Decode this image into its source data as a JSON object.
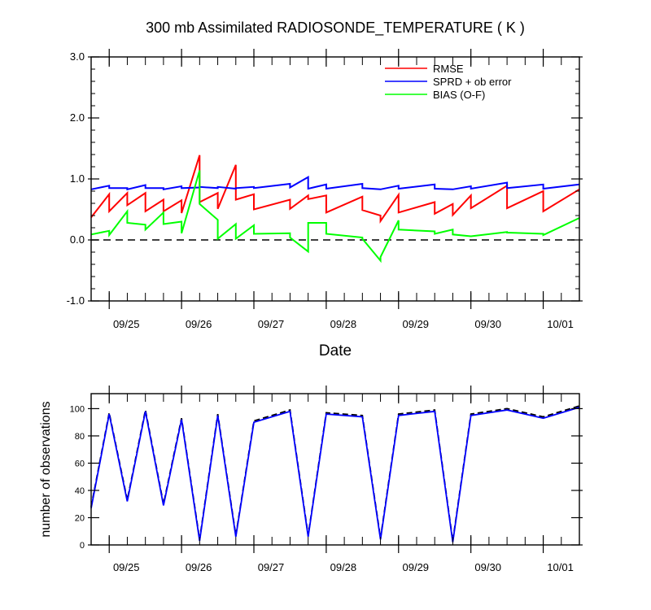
{
  "chart_data": [
    {
      "type": "line",
      "title": "300 mb Assimilated RADIOSONDE_TEMPERATURE ( K )",
      "xlabel": "Date",
      "ylabel": "",
      "xlim": [
        "2015-09-24T18:00",
        "2015-10-01T12:00"
      ],
      "ylim": [
        -1.0,
        3.0
      ],
      "yticks": [
        "-1.0",
        "0.0",
        "1.0",
        "2.0",
        "3.0"
      ],
      "xtick_labels": [
        "09/25",
        "09/26",
        "09/27",
        "09/28",
        "09/29",
        "09/30",
        "10/01"
      ],
      "zero_line": true,
      "grid": false,
      "legend_position": "top-right",
      "series": [
        {
          "name": "RMSE",
          "color": "#ff0000",
          "points": [
            [
              "2015-09-24T18:00",
              0.37
            ],
            [
              "2015-09-25T00:00",
              0.75
            ],
            [
              "2015-09-25T00:00",
              0.47
            ],
            [
              "2015-09-25T06:00",
              0.77
            ],
            [
              "2015-09-25T06:00",
              0.57
            ],
            [
              "2015-09-25T12:00",
              0.77
            ],
            [
              "2015-09-25T12:00",
              0.47
            ],
            [
              "2015-09-25T18:00",
              0.66
            ],
            [
              "2015-09-25T18:00",
              0.47
            ],
            [
              "2015-09-26T00:00",
              0.65
            ],
            [
              "2015-09-26T00:00",
              0.44
            ],
            [
              "2015-09-26T06:00",
              1.39
            ],
            [
              "2015-09-26T06:00",
              0.62
            ],
            [
              "2015-09-26T12:00",
              0.77
            ],
            [
              "2015-09-26T12:00",
              0.51
            ],
            [
              "2015-09-26T18:00",
              1.23
            ],
            [
              "2015-09-26T18:00",
              0.66
            ],
            [
              "2015-09-27T00:00",
              0.75
            ],
            [
              "2015-09-27T00:00",
              0.5
            ],
            [
              "2015-09-27T12:00",
              0.66
            ],
            [
              "2015-09-27T12:00",
              0.51
            ],
            [
              "2015-09-27T18:00",
              0.73
            ],
            [
              "2015-09-27T18:00",
              0.67
            ],
            [
              "2015-09-28T00:00",
              0.73
            ],
            [
              "2015-09-28T00:00",
              0.45
            ],
            [
              "2015-09-28T12:00",
              0.71
            ],
            [
              "2015-09-28T12:00",
              0.49
            ],
            [
              "2015-09-28T18:00",
              0.4
            ],
            [
              "2015-09-28T18:00",
              0.31
            ],
            [
              "2015-09-29T00:00",
              0.74
            ],
            [
              "2015-09-29T00:00",
              0.45
            ],
            [
              "2015-09-29T12:00",
              0.62
            ],
            [
              "2015-09-29T12:00",
              0.43
            ],
            [
              "2015-09-29T18:00",
              0.59
            ],
            [
              "2015-09-29T18:00",
              0.41
            ],
            [
              "2015-09-30T00:00",
              0.73
            ],
            [
              "2015-09-30T00:00",
              0.52
            ],
            [
              "2015-09-30T12:00",
              0.89
            ],
            [
              "2015-09-30T12:00",
              0.52
            ],
            [
              "2015-10-01T00:00",
              0.8
            ],
            [
              "2015-10-01T00:00",
              0.47
            ],
            [
              "2015-10-01T12:00",
              0.83
            ]
          ]
        },
        {
          "name": "SPRD + ob error",
          "color": "#0000ff",
          "points": [
            [
              "2015-09-24T18:00",
              0.83
            ],
            [
              "2015-09-25T00:00",
              0.89
            ],
            [
              "2015-09-25T00:00",
              0.85
            ],
            [
              "2015-09-25T06:00",
              0.85
            ],
            [
              "2015-09-25T06:00",
              0.83
            ],
            [
              "2015-09-25T12:00",
              0.9
            ],
            [
              "2015-09-25T12:00",
              0.85
            ],
            [
              "2015-09-25T18:00",
              0.85
            ],
            [
              "2015-09-25T18:00",
              0.83
            ],
            [
              "2015-09-26T00:00",
              0.88
            ],
            [
              "2015-09-26T00:00",
              0.85
            ],
            [
              "2015-09-26T06:00",
              0.86
            ],
            [
              "2015-09-26T06:00",
              0.87
            ],
            [
              "2015-09-26T12:00",
              0.85
            ],
            [
              "2015-09-26T12:00",
              0.87
            ],
            [
              "2015-09-26T18:00",
              0.84
            ],
            [
              "2015-09-26T18:00",
              0.85
            ],
            [
              "2015-09-27T00:00",
              0.87
            ],
            [
              "2015-09-27T00:00",
              0.85
            ],
            [
              "2015-09-27T12:00",
              0.92
            ],
            [
              "2015-09-27T12:00",
              0.86
            ],
            [
              "2015-09-27T18:00",
              1.03
            ],
            [
              "2015-09-27T18:00",
              0.84
            ],
            [
              "2015-09-28T00:00",
              0.91
            ],
            [
              "2015-09-28T00:00",
              0.84
            ],
            [
              "2015-09-28T12:00",
              0.92
            ],
            [
              "2015-09-28T12:00",
              0.85
            ],
            [
              "2015-09-28T18:00",
              0.83
            ],
            [
              "2015-09-28T18:00",
              0.83
            ],
            [
              "2015-09-29T00:00",
              0.89
            ],
            [
              "2015-09-29T00:00",
              0.84
            ],
            [
              "2015-09-29T12:00",
              0.91
            ],
            [
              "2015-09-29T12:00",
              0.84
            ],
            [
              "2015-09-29T18:00",
              0.83
            ],
            [
              "2015-09-29T18:00",
              0.83
            ],
            [
              "2015-09-30T00:00",
              0.88
            ],
            [
              "2015-09-30T00:00",
              0.84
            ],
            [
              "2015-09-30T12:00",
              0.94
            ],
            [
              "2015-09-30T12:00",
              0.85
            ],
            [
              "2015-10-01T00:00",
              0.91
            ],
            [
              "2015-10-01T00:00",
              0.84
            ],
            [
              "2015-10-01T12:00",
              0.91
            ]
          ]
        },
        {
          "name": "BIAS (O-F)",
          "color": "#00ff00",
          "points": [
            [
              "2015-09-24T18:00",
              0.09
            ],
            [
              "2015-09-25T00:00",
              0.15
            ],
            [
              "2015-09-25T00:00",
              0.08
            ],
            [
              "2015-09-25T06:00",
              0.47
            ],
            [
              "2015-09-25T06:00",
              0.28
            ],
            [
              "2015-09-25T12:00",
              0.25
            ],
            [
              "2015-09-25T12:00",
              0.17
            ],
            [
              "2015-09-25T18:00",
              0.45
            ],
            [
              "2015-09-25T18:00",
              0.26
            ],
            [
              "2015-09-26T00:00",
              0.3
            ],
            [
              "2015-09-26T00:00",
              0.11
            ],
            [
              "2015-09-26T06:00",
              1.14
            ],
            [
              "2015-09-26T06:00",
              0.59
            ],
            [
              "2015-09-26T12:00",
              0.33
            ],
            [
              "2015-09-26T12:00",
              0.02
            ],
            [
              "2015-09-26T18:00",
              0.26
            ],
            [
              "2015-09-26T18:00",
              0.02
            ],
            [
              "2015-09-27T00:00",
              0.24
            ],
            [
              "2015-09-27T00:00",
              0.1
            ],
            [
              "2015-09-27T12:00",
              0.11
            ],
            [
              "2015-09-27T12:00",
              0.04
            ],
            [
              "2015-09-27T18:00",
              -0.19
            ],
            [
              "2015-09-27T18:00",
              0.28
            ],
            [
              "2015-09-28T00:00",
              0.28
            ],
            [
              "2015-09-28T00:00",
              0.1
            ],
            [
              "2015-09-28T12:00",
              0.04
            ],
            [
              "2015-09-28T12:00",
              0.02
            ],
            [
              "2015-09-28T18:00",
              -0.34
            ],
            [
              "2015-09-28T18:00",
              -0.28
            ],
            [
              "2015-09-29T00:00",
              0.32
            ],
            [
              "2015-09-29T00:00",
              0.17
            ],
            [
              "2015-09-29T12:00",
              0.14
            ],
            [
              "2015-09-29T12:00",
              0.1
            ],
            [
              "2015-09-29T18:00",
              0.17
            ],
            [
              "2015-09-29T18:00",
              0.09
            ],
            [
              "2015-09-30T00:00",
              0.06
            ],
            [
              "2015-09-30T00:00",
              0.06
            ],
            [
              "2015-09-30T12:00",
              0.13
            ],
            [
              "2015-09-30T12:00",
              0.12
            ],
            [
              "2015-10-01T00:00",
              0.1
            ],
            [
              "2015-10-01T00:00",
              0.08
            ],
            [
              "2015-10-01T12:00",
              0.36
            ]
          ]
        }
      ]
    },
    {
      "type": "line",
      "title": "",
      "xlabel": "",
      "ylabel": "number of observations",
      "xlim": [
        "2015-09-24T18:00",
        "2015-10-01T12:00"
      ],
      "ylim": [
        0,
        111
      ],
      "yticks": [
        "0",
        "20",
        "40",
        "60",
        "80",
        "100"
      ],
      "xtick_labels": [
        "09/25",
        "09/26",
        "09/27",
        "09/28",
        "09/29",
        "09/30",
        "10/01"
      ],
      "grid": false,
      "series": [
        {
          "color": "#000000",
          "dashed": true,
          "points": [
            [
              "2015-09-24T18:00",
              28
            ],
            [
              "2015-09-25T00:00",
              97
            ],
            [
              "2015-09-25T06:00",
              33
            ],
            [
              "2015-09-25T12:00",
              99
            ],
            [
              "2015-09-25T18:00",
              30
            ],
            [
              "2015-09-26T00:00",
              93
            ],
            [
              "2015-09-26T06:00",
              4
            ],
            [
              "2015-09-26T12:00",
              96
            ],
            [
              "2015-09-26T18:00",
              7
            ],
            [
              "2015-09-27T00:00",
              91
            ],
            [
              "2015-09-27T12:00",
              99
            ],
            [
              "2015-09-27T18:00",
              7
            ],
            [
              "2015-09-28T00:00",
              97
            ],
            [
              "2015-09-28T12:00",
              95
            ],
            [
              "2015-09-28T18:00",
              5
            ],
            [
              "2015-09-29T00:00",
              96
            ],
            [
              "2015-09-29T12:00",
              99
            ],
            [
              "2015-09-29T18:00",
              3
            ],
            [
              "2015-09-30T00:00",
              96
            ],
            [
              "2015-09-30T12:00",
              100
            ],
            [
              "2015-10-01T00:00",
              94
            ],
            [
              "2015-10-01T12:00",
              102
            ]
          ]
        },
        {
          "color": "#0000ff",
          "dashed": false,
          "points": [
            [
              "2015-09-24T18:00",
              27
            ],
            [
              "2015-09-25T00:00",
              96
            ],
            [
              "2015-09-25T06:00",
              32
            ],
            [
              "2015-09-25T12:00",
              98
            ],
            [
              "2015-09-25T18:00",
              29
            ],
            [
              "2015-09-26T00:00",
              92
            ],
            [
              "2015-09-26T06:00",
              3
            ],
            [
              "2015-09-26T12:00",
              95
            ],
            [
              "2015-09-26T18:00",
              6
            ],
            [
              "2015-09-27T00:00",
              90
            ],
            [
              "2015-09-27T12:00",
              98
            ],
            [
              "2015-09-27T18:00",
              6
            ],
            [
              "2015-09-28T00:00",
              96
            ],
            [
              "2015-09-28T12:00",
              94
            ],
            [
              "2015-09-28T18:00",
              4
            ],
            [
              "2015-09-29T00:00",
              95
            ],
            [
              "2015-09-29T12:00",
              98
            ],
            [
              "2015-09-29T18:00",
              2
            ],
            [
              "2015-09-30T00:00",
              95
            ],
            [
              "2015-09-30T12:00",
              99
            ],
            [
              "2015-10-01T00:00",
              93
            ],
            [
              "2015-10-01T12:00",
              101
            ]
          ]
        }
      ]
    }
  ]
}
